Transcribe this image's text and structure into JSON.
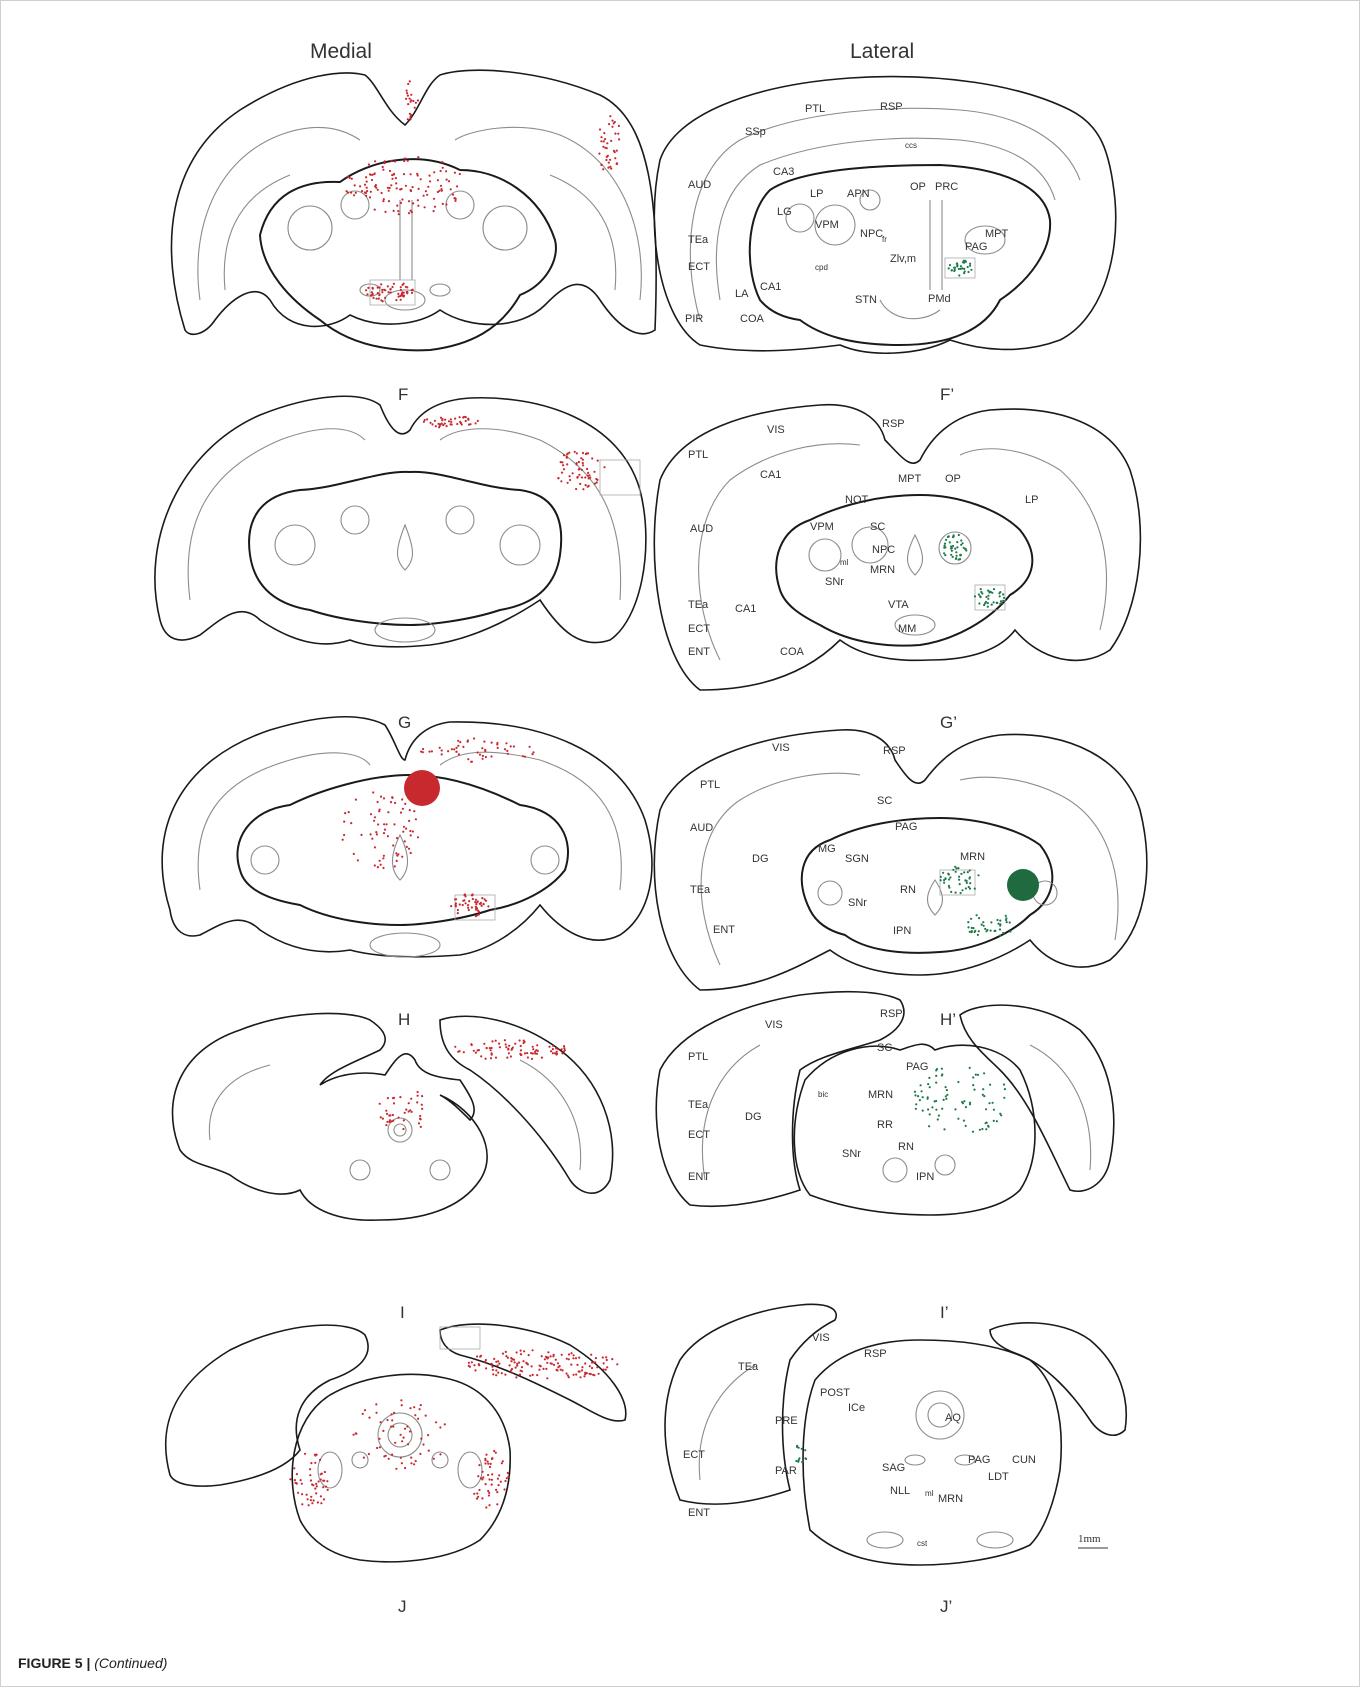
{
  "columns": {
    "medial": "Medial",
    "lateral": "Lateral"
  },
  "panels": {
    "F": "F",
    "Fp": "F’",
    "G": "G",
    "Gp": "G’",
    "H": "H",
    "Hp": "H’",
    "I": "I",
    "Ip": "I’",
    "J": "J",
    "Jp": "J’"
  },
  "labels": {
    "Fp": [
      "PTL",
      "RSP",
      "SSp",
      "ccs",
      "AUD",
      "CA3",
      "LP",
      "APN",
      "OP",
      "PRC",
      "LG",
      "VPM",
      "NPC",
      "MPT",
      "TEa",
      "fr",
      "PAG",
      "ECT",
      "cpd",
      "Zlv,m",
      "CA1",
      "LA",
      "STN",
      "PMd",
      "PIR",
      "COA"
    ],
    "Gp": [
      "VIS",
      "RSP",
      "PTL",
      "CA1",
      "MPT",
      "OP",
      "NOT",
      "LP",
      "AUD",
      "SC",
      "VPM",
      "NPC",
      "ml",
      "MRN",
      "SNr",
      "TEa",
      "VTA",
      "CA1",
      "ECT",
      "MM",
      "ENT",
      "COA"
    ],
    "Hp": [
      "VIS",
      "RSP",
      "PTL",
      "SC",
      "AUD",
      "PAG",
      "MG",
      "SGN",
      "DG",
      "MRN",
      "TEa",
      "RN",
      "SNr",
      "IPN",
      "ENT"
    ],
    "Ip": [
      "VIS",
      "RSP",
      "SC",
      "PTL",
      "PAG",
      "bic",
      "MRN",
      "TEa",
      "DG",
      "RR",
      "ECT",
      "RN",
      "SNr",
      "IPN",
      "ENT"
    ],
    "Jp": [
      "VIS",
      "RSP",
      "TEa",
      "POST",
      "ICe",
      "PRE",
      "AQ",
      "ECT",
      "PAG",
      "CUN",
      "SAG",
      "PAR",
      "LDT",
      "NLL",
      "MRN",
      "ml",
      "ENT",
      "cst"
    ]
  },
  "scale_bar": "1mm",
  "caption": {
    "figure": "FIGURE 5 |",
    "note": "(Continued)"
  },
  "colors": {
    "medial_label": "#c8292f",
    "lateral_label": "#1f7a4a",
    "outline": "#1a1a1a",
    "inner": "#8a8a8a"
  }
}
